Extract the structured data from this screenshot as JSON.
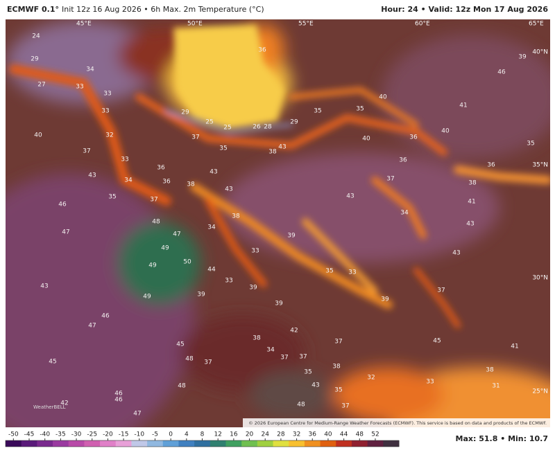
{
  "header": {
    "model": "ECMWF 0.1°",
    "title": "Init 12z 16 Aug 2026 • 6h Max. 2m Temperature (°C)",
    "valid": "Hour: 24 • Valid: 12z Mon 17 Aug 2026"
  },
  "map": {
    "geo_labels": [
      "45°E",
      "50°E",
      "55°E",
      "60°E",
      "65°E",
      "40°N",
      "35°N",
      "30°N",
      "25°N"
    ],
    "labels": [
      24,
      29,
      27,
      34,
      33,
      33,
      33,
      40,
      32,
      37,
      43,
      33,
      36,
      34,
      36,
      38,
      37,
      35,
      46,
      47,
      48,
      47,
      49,
      49,
      50,
      34,
      38,
      43,
      43,
      44,
      33,
      39,
      33,
      39,
      35,
      33,
      39,
      39,
      43,
      37,
      34,
      43,
      41,
      43,
      37,
      45,
      41,
      38,
      33,
      31,
      32,
      35,
      43,
      38,
      34,
      37,
      37,
      37,
      42,
      48,
      38,
      35,
      37,
      39,
      49,
      45,
      48,
      37,
      48,
      43,
      46,
      47,
      45,
      46,
      46,
      42,
      47,
      36,
      40,
      41,
      35,
      35,
      40,
      36,
      40,
      36,
      36,
      38,
      35,
      39,
      46,
      29,
      25,
      25,
      26,
      28,
      29,
      37,
      35,
      38,
      43
    ],
    "credit": "© 2026 European Centre for Medium-Range Weather Forecasts (ECMWF). This service is based on data and products of the ECMWF.",
    "logo": "WeatherBELL"
  },
  "colorbar": {
    "ticks": [
      -50,
      -45,
      -40,
      -35,
      -30,
      -25,
      -20,
      -15,
      -10,
      -5,
      0,
      4,
      8,
      12,
      16,
      20,
      24,
      28,
      32,
      36,
      40,
      44,
      48,
      52
    ],
    "colors": [
      "#3a0a5a",
      "#5a1a7a",
      "#7a2a8e",
      "#9a3aa0",
      "#b84aa8",
      "#d060b0",
      "#e080c8",
      "#e8a0d8",
      "#c0c8e8",
      "#90b8e0",
      "#60a0d8",
      "#4080c0",
      "#3070a0",
      "#308070",
      "#40a060",
      "#70c050",
      "#a0d040",
      "#e0e040",
      "#f8c030",
      "#f09020",
      "#e06010",
      "#c03020",
      "#902030",
      "#602040",
      "#403040"
    ],
    "max": "Max: 51.8 • Min: 10.7"
  }
}
